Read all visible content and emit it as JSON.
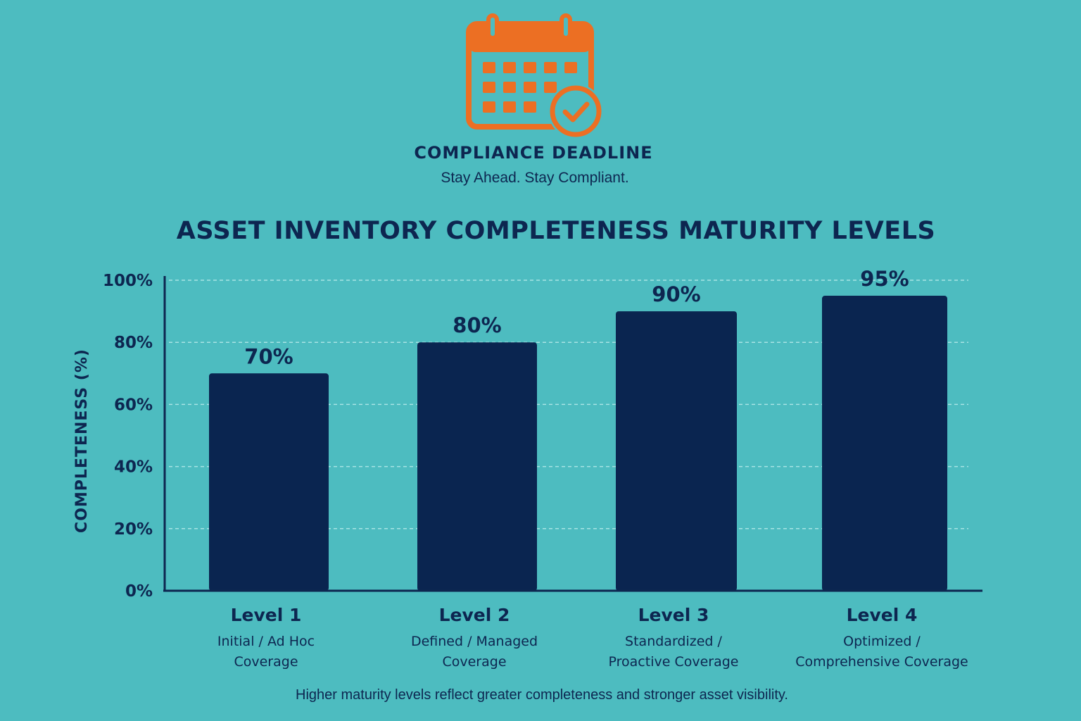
{
  "brand": {
    "title": "COMPLIANCE DEADLINE",
    "tagline": "Stay Ahead. Stay Compliant.",
    "icon": "calendar-check-icon",
    "icon_color": "#ec6f23"
  },
  "footnote": "Higher maturity levels reflect greater completeness and stronger asset visibility.",
  "colors": {
    "background": "#4dbcc0",
    "bar": "#0a2550",
    "text": "#0d2650",
    "grid": "#a8e3e4"
  },
  "chart_data": {
    "type": "bar",
    "title": "ASSET INVENTORY COMPLETENESS MATURITY LEVELS",
    "ylabel": "COMPLETENESS (%)",
    "xlabel": "",
    "ylim": [
      0,
      100
    ],
    "yticks": [
      "0%",
      "20%",
      "40%",
      "60%",
      "80%",
      "100%"
    ],
    "grid": true,
    "categories": [
      "Level 1",
      "Level 2",
      "Level 3",
      "Level 4"
    ],
    "subtitles": [
      [
        "Initial / Ad Hoc",
        "Coverage"
      ],
      [
        "Defined / Managed",
        "Coverage"
      ],
      [
        "Standardized /",
        "Proactive Coverage"
      ],
      [
        "Optimized /",
        "Comprehensive Coverage"
      ]
    ],
    "values": [
      70,
      80,
      90,
      95
    ],
    "value_labels": [
      "70%",
      "80%",
      "90%",
      "95%"
    ]
  }
}
